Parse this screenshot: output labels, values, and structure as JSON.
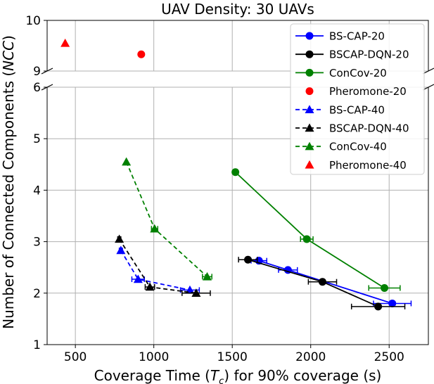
{
  "chart_data": {
    "type": "line",
    "title": "UAV Density: 30 UAVs",
    "xlabel_main": "Coverage Time (",
    "xlabel_sym": "T",
    "xlabel_sub": "c",
    "xlabel_tail": ") for 90% coverage (s)",
    "ylabel_main": "Number of Connected Components (",
    "ylabel_sym": "NCC",
    "ylabel_tail": ")",
    "xlim": [
      320,
      2750
    ],
    "ylim_lower": [
      1,
      6
    ],
    "ylim_upper": [
      9,
      10
    ],
    "xticks": [
      "500",
      "1000",
      "1500",
      "2000",
      "2500"
    ],
    "xtick_values": [
      500,
      1000,
      1500,
      2000,
      2500
    ],
    "yticks_lower": [
      "1",
      "2",
      "3",
      "4",
      "5",
      "6"
    ],
    "ytick_values_lower": [
      1,
      2,
      3,
      4,
      5,
      6
    ],
    "yticks_upper": [
      "9",
      "10"
    ],
    "ytick_values_upper": [
      9,
      10
    ],
    "grid": true,
    "legend_position": "top-right",
    "colors": {
      "blue": "#0000ff",
      "black": "#000000",
      "green": "#008000",
      "red": "#ff0000",
      "grid": "#b0b0b0"
    },
    "series": [
      {
        "name": "BS-CAP-20",
        "color": "blue",
        "marker": "circle",
        "dash": false,
        "x": [
          1670,
          1855,
          2520
        ],
        "y": [
          2.63,
          2.45,
          1.8
        ],
        "xerr": [
          50,
          60,
          120
        ]
      },
      {
        "name": "BSCAP-DQN-20",
        "color": "black",
        "marker": "circle",
        "dash": false,
        "x": [
          1600,
          2075,
          2430
        ],
        "y": [
          2.65,
          2.22,
          1.74
        ],
        "xerr": [
          60,
          90,
          170
        ]
      },
      {
        "name": "ConCov-20",
        "color": "green",
        "marker": "circle",
        "dash": false,
        "x": [
          1520,
          1975,
          2470
        ],
        "y": [
          4.35,
          3.05,
          2.1
        ],
        "xerr": [
          0,
          40,
          100
        ]
      },
      {
        "name": "Pheromone-20",
        "color": "red",
        "marker": "circle",
        "dash": false,
        "x": [
          920
        ],
        "y": [
          9.33
        ],
        "xerr": [
          0
        ]
      },
      {
        "name": "BS-CAP-40",
        "color": "blue",
        "marker": "triangle",
        "dash": true,
        "x": [
          790,
          900,
          1230
        ],
        "y": [
          2.83,
          2.27,
          2.06
        ],
        "xerr": [
          10,
          40,
          60
        ]
      },
      {
        "name": "BSCAP-DQN-40",
        "color": "black",
        "marker": "triangle",
        "dash": true,
        "x": [
          780,
          975,
          1270
        ],
        "y": [
          3.05,
          2.12,
          2.0
        ],
        "xerr": [
          10,
          30,
          90
        ]
      },
      {
        "name": "ConCov-40",
        "color": "green",
        "marker": "triangle",
        "dash": true,
        "x": [
          825,
          1005,
          1340
        ],
        "y": [
          4.55,
          3.25,
          2.32
        ],
        "xerr": [
          0,
          20,
          30
        ]
      },
      {
        "name": "Pheromone-40",
        "color": "red",
        "marker": "triangle",
        "dash": true,
        "x": [
          435
        ],
        "y": [
          9.55
        ],
        "xerr": [
          0
        ]
      }
    ]
  }
}
